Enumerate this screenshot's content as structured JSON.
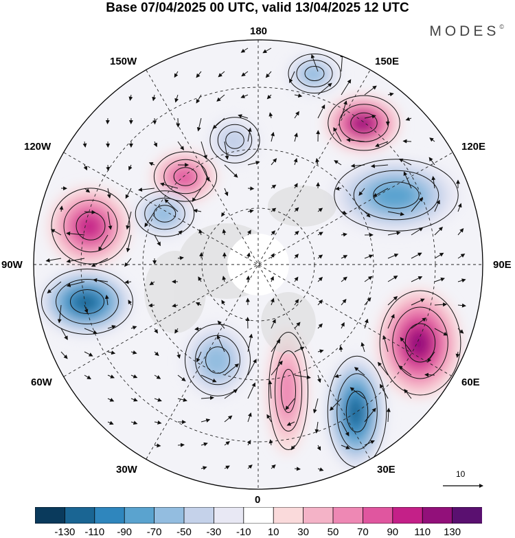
{
  "title": "Base 07/04/2025 00 UTC, valid 13/04/2025 12 UTC",
  "brand": "MODES",
  "brand_mark": "©",
  "longitude_labels": {
    "n180": "180",
    "w150": "150W",
    "e150": "150E",
    "w120": "120W",
    "e120": "120E",
    "w90": "90W",
    "e90": "90E",
    "w60": "60W",
    "e60": "60E",
    "w30": "30W",
    "e30": "30E",
    "s0": "0"
  },
  "reference_vector": "10",
  "colorbar": {
    "ticks": [
      "-130",
      "-110",
      "-90",
      "-70",
      "-50",
      "-30",
      "-10",
      "10",
      "30",
      "50",
      "70",
      "90",
      "110",
      "130"
    ],
    "colors": [
      "#0a3a5c",
      "#1a6593",
      "#2f86bd",
      "#5aa3cf",
      "#93bde0",
      "#c5d2ea",
      "#e8e8f4",
      "#ffffff",
      "#fadadb",
      "#f4b3c7",
      "#ee88b4",
      "#e0569f",
      "#c42088",
      "#92107a",
      "#5a1070"
    ]
  },
  "anomaly_centers": [
    {
      "sign": "positive",
      "value": 100
    },
    {
      "sign": "positive",
      "value": 120
    },
    {
      "sign": "positive",
      "value": 80
    },
    {
      "sign": "positive",
      "value": 110
    },
    {
      "sign": "positive",
      "value": 50
    },
    {
      "sign": "negative",
      "value": -60
    },
    {
      "sign": "negative",
      "value": -80
    },
    {
      "sign": "negative",
      "value": -120
    },
    {
      "sign": "negative",
      "value": -60
    },
    {
      "sign": "negative",
      "value": -120
    },
    {
      "sign": "negative",
      "value": -50
    },
    {
      "sign": "negative",
      "value": -40
    }
  ]
}
